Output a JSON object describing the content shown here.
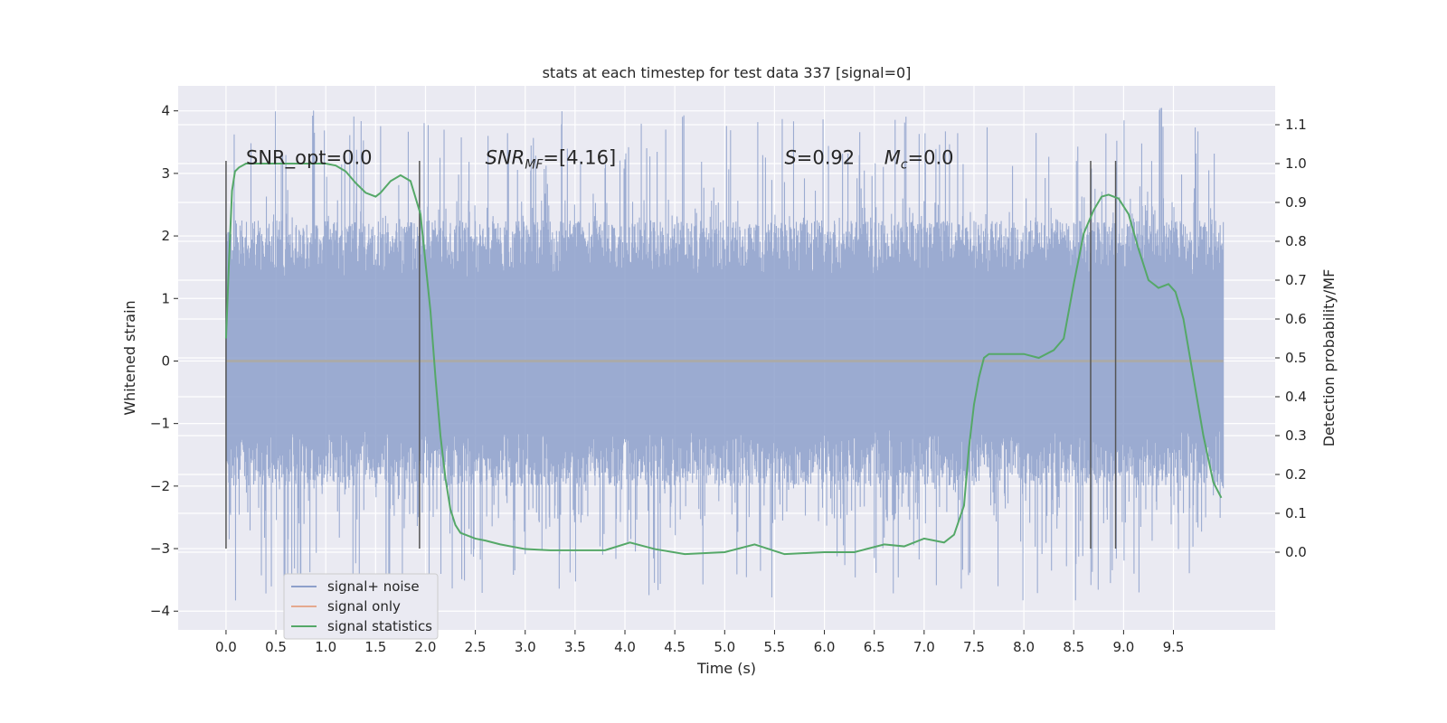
{
  "chart_data": {
    "type": "line",
    "title": "stats at each timestep for test data 337 [signal=0]",
    "xlabel": "Time (s)",
    "ylabel": "Whitened strain",
    "y2label": "Detection probability/MF",
    "xlim": [
      -0.48,
      10.52
    ],
    "ylim": [
      -4.3,
      4.4
    ],
    "y2lim": [
      -0.2,
      1.2
    ],
    "x_ticks": [
      0.0,
      0.5,
      1.0,
      1.5,
      2.0,
      2.5,
      3.0,
      3.5,
      4.0,
      4.5,
      5.0,
      5.5,
      6.0,
      6.5,
      7.0,
      7.5,
      8.0,
      8.5,
      9.0,
      9.5
    ],
    "x_tick_labels": [
      "0.0",
      "0.5",
      "1.0",
      "1.5",
      "2.0",
      "2.5",
      "3.0",
      "3.5",
      "4.0",
      "4.5",
      "5.0",
      "5.5",
      "6.0",
      "6.5",
      "7.0",
      "7.5",
      "8.0",
      "8.5",
      "9.0",
      "9.5"
    ],
    "y_ticks": [
      -4,
      -3,
      -2,
      -1,
      0,
      1,
      2,
      3,
      4
    ],
    "y_tick_labels": [
      "−4",
      "−3",
      "−2",
      "−1",
      "0",
      "1",
      "2",
      "3",
      "4"
    ],
    "y2_ticks": [
      0.0,
      0.1,
      0.2,
      0.3,
      0.4,
      0.5,
      0.6,
      0.7,
      0.8,
      0.9,
      1.0,
      1.1
    ],
    "y2_tick_labels": [
      "0.0",
      "0.1",
      "0.2",
      "0.3",
      "0.4",
      "0.5",
      "0.6",
      "0.7",
      "0.8",
      "0.9",
      "1.0",
      "1.1"
    ],
    "grid": true,
    "legend_position": "bottom-left",
    "annotations": [
      {
        "text": "SNR_opt=0.0",
        "x": 0.2,
        "y": 3.15
      },
      {
        "text": "SNR",
        "sub": "MF",
        "tail": "=[4.16]",
        "italic": true,
        "x": 2.6,
        "y": 3.15
      },
      {
        "text": "S",
        "tail": "=0.92",
        "italic": true,
        "x": 5.6,
        "y": 3.15
      },
      {
        "text": "M",
        "sub": "c",
        "tail": "=0.0",
        "italic": true,
        "x": 6.6,
        "y": 3.15
      }
    ],
    "vertical_markers": [
      {
        "x": 0.0,
        "y_range": [
          -3.0,
          3.2
        ]
      },
      {
        "x": 1.94,
        "y_range": [
          -3.0,
          3.2
        ]
      },
      {
        "x": 8.67,
        "y_range": [
          -3.0,
          3.2
        ]
      },
      {
        "x": 8.92,
        "y_range": [
          -3.0,
          3.2
        ]
      }
    ],
    "series": [
      {
        "name": "signal+ noise",
        "color": "#8da0cb",
        "axis": "left",
        "x_range": [
          0.0,
          10.0
        ],
        "core_amplitude": [
          -1.1,
          1.35
        ],
        "peak_max": 4.05,
        "peak_min": -3.85
      },
      {
        "name": "signal only",
        "color": "#e5a98f",
        "axis": "left",
        "x": [
          0.0,
          10.0
        ],
        "values": [
          0.0,
          0.0
        ]
      },
      {
        "name": "signal statistics",
        "color": "#55a868",
        "axis": "right",
        "x": [
          0.0,
          0.03,
          0.06,
          0.09,
          0.13,
          0.2,
          0.3,
          0.5,
          0.7,
          0.9,
          1.0,
          1.1,
          1.2,
          1.3,
          1.4,
          1.5,
          1.55,
          1.65,
          1.75,
          1.85,
          1.95,
          2.05,
          2.1,
          2.15,
          2.2,
          2.25,
          2.3,
          2.35,
          2.4,
          2.45,
          2.5,
          2.6,
          2.75,
          3.0,
          3.25,
          3.5,
          3.8,
          4.05,
          4.3,
          4.6,
          5.0,
          5.3,
          5.6,
          6.0,
          6.3,
          6.6,
          6.8,
          7.0,
          7.2,
          7.3,
          7.4,
          7.45,
          7.5,
          7.55,
          7.6,
          7.65,
          7.75,
          8.0,
          8.15,
          8.3,
          8.4,
          8.5,
          8.6,
          8.7,
          8.78,
          8.85,
          8.95,
          9.05,
          9.15,
          9.25,
          9.35,
          9.45,
          9.52,
          9.6,
          9.7,
          9.8,
          9.9,
          9.98
        ],
        "values": [
          0.55,
          0.75,
          0.93,
          0.98,
          0.99,
          1.0,
          1.0,
          1.0,
          1.0,
          1.0,
          1.0,
          0.995,
          0.98,
          0.95,
          0.925,
          0.915,
          0.925,
          0.955,
          0.97,
          0.955,
          0.87,
          0.62,
          0.45,
          0.3,
          0.19,
          0.11,
          0.07,
          0.05,
          0.045,
          0.04,
          0.035,
          0.03,
          0.02,
          0.008,
          0.005,
          0.005,
          0.005,
          0.025,
          0.008,
          -0.005,
          0.0,
          0.02,
          -0.005,
          0.0,
          0.0,
          0.02,
          0.015,
          0.035,
          0.025,
          0.045,
          0.12,
          0.27,
          0.38,
          0.45,
          0.5,
          0.51,
          0.51,
          0.51,
          0.5,
          0.52,
          0.55,
          0.69,
          0.82,
          0.88,
          0.915,
          0.92,
          0.91,
          0.87,
          0.78,
          0.7,
          0.68,
          0.69,
          0.67,
          0.6,
          0.45,
          0.3,
          0.18,
          0.14
        ]
      }
    ]
  }
}
